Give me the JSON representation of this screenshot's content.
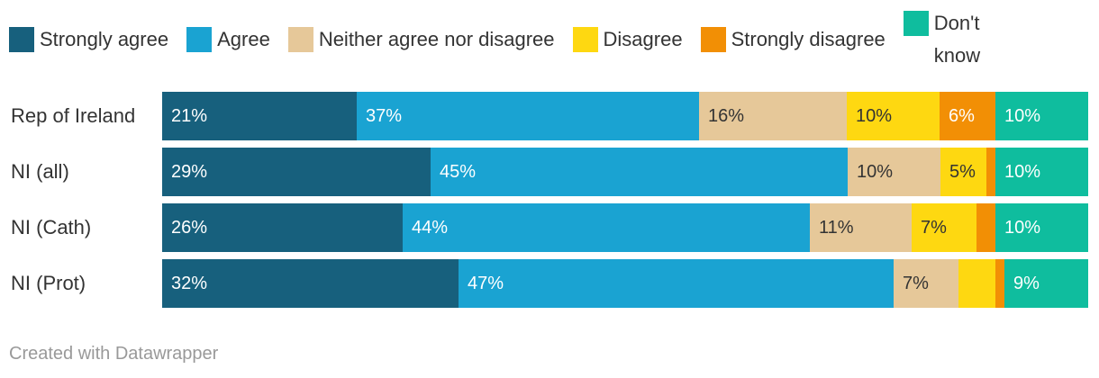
{
  "legend": [
    {
      "label": "Strongly agree",
      "color": "#17607d"
    },
    {
      "label": "Agree",
      "color": "#1aa3d2"
    },
    {
      "label": "Neither agree nor disagree",
      "color": "#e6c899"
    },
    {
      "label": "Disagree",
      "color": "#fed811"
    },
    {
      "label": "Strongly disagree",
      "color": "#f28f05"
    },
    {
      "label": "Don't know",
      "color": "#0fbd9e"
    }
  ],
  "chart_data": {
    "type": "bar",
    "orientation": "horizontal",
    "stacked": true,
    "categories": [
      "Rep of Ireland",
      "NI (all)",
      "NI (Cath)",
      "NI (Prot)"
    ],
    "series": [
      {
        "name": "Strongly agree",
        "values": [
          21,
          29,
          26,
          32
        ],
        "labels": [
          "21%",
          "29%",
          "26%",
          "32%"
        ]
      },
      {
        "name": "Agree",
        "values": [
          37,
          45,
          44,
          47
        ],
        "labels": [
          "37%",
          "45%",
          "44%",
          "47%"
        ]
      },
      {
        "name": "Neither agree nor disagree",
        "values": [
          16,
          10,
          11,
          7
        ],
        "labels": [
          "16%",
          "10%",
          "11%",
          "7%"
        ]
      },
      {
        "name": "Disagree",
        "values": [
          10,
          5,
          7,
          4
        ],
        "labels": [
          "10%",
          "5%",
          "7%",
          ""
        ]
      },
      {
        "name": "Strongly disagree",
        "values": [
          6,
          1,
          2,
          1
        ],
        "labels": [
          "6%",
          "",
          "",
          ""
        ]
      },
      {
        "name": "Don't know",
        "values": [
          10,
          10,
          10,
          9
        ],
        "labels": [
          "10%",
          "10%",
          "10%",
          "9%"
        ]
      }
    ],
    "xlim": [
      0,
      100
    ],
    "legend_position": "top",
    "grid": false
  },
  "footer": "Created with Datawrapper"
}
